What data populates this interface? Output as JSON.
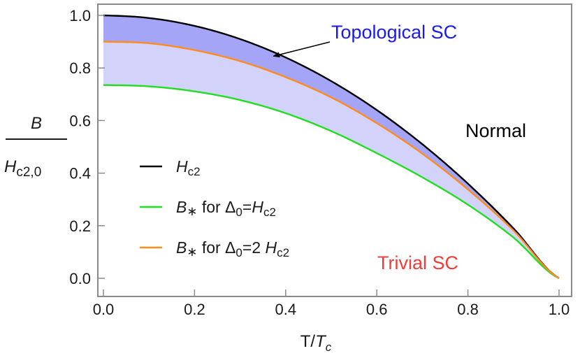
{
  "chart_data": {
    "type": "line",
    "x": [
      0,
      0.1,
      0.2,
      0.3,
      0.4,
      0.5,
      0.6,
      0.7,
      0.8,
      0.9,
      1.0
    ],
    "xlim": [
      0,
      1
    ],
    "ylim": [
      0,
      1.05
    ],
    "xticks": [
      "0.0",
      "0.2",
      "0.4",
      "0.6",
      "0.8",
      "1.0"
    ],
    "yticks": [
      "0.0",
      "0.2",
      "0.4",
      "0.6",
      "0.8",
      "1.0"
    ],
    "xlabel": {
      "main": "T/",
      "italic": "T",
      "sub": "c"
    },
    "ylabel": {
      "num": "B",
      "den": "H",
      "den_sub": "c2,0"
    },
    "grid": false,
    "series": [
      {
        "key": "hc2",
        "color": "#000000",
        "values": [
          1.0,
          0.99,
          0.96,
          0.91,
          0.84,
          0.75,
          0.64,
          0.51,
          0.36,
          0.19,
          0.0
        ]
      },
      {
        "key": "b1",
        "color": "#22dd22",
        "values": [
          0.735,
          0.73,
          0.711,
          0.678,
          0.628,
          0.56,
          0.476,
          0.384,
          0.28,
          0.155,
          0.0
        ]
      },
      {
        "key": "b2",
        "color": "#ff8c1a",
        "values": [
          0.9,
          0.894,
          0.868,
          0.826,
          0.765,
          0.688,
          0.59,
          0.474,
          0.338,
          0.182,
          0.0
        ]
      }
    ],
    "fills": [
      {
        "from": "hc2",
        "to": "b2",
        "color": "#a5a5f8"
      },
      {
        "from": "b2",
        "to": "b1",
        "color": "#d2d2fb"
      }
    ],
    "legend": {
      "placement": "left-middle",
      "entries": [
        {
          "color": "#000000",
          "pre": "",
          "italic": "H",
          "sub": "c2",
          "post": ""
        },
        {
          "color": "#22dd22",
          "pre": "",
          "italic": "B",
          "sub": "∗",
          "post": " for Δ",
          "sub2": "0",
          "eq": "=",
          "italic2": "H",
          "sub3": "c2"
        },
        {
          "color": "#ff8c1a",
          "pre": "",
          "italic": "B",
          "sub": "∗",
          "post": " for Δ",
          "sub2": "0",
          "eq": "=2 ",
          "italic2": "H",
          "sub3": "c2"
        }
      ]
    },
    "annotations": [
      {
        "text": "Topological SC",
        "color": "#1a1aee",
        "arrow_to": [
          0.37,
          0.85
        ]
      },
      {
        "text": "Normal",
        "color": "#000000"
      },
      {
        "text": "Trivial SC",
        "color": "#f03c3c"
      }
    ]
  }
}
